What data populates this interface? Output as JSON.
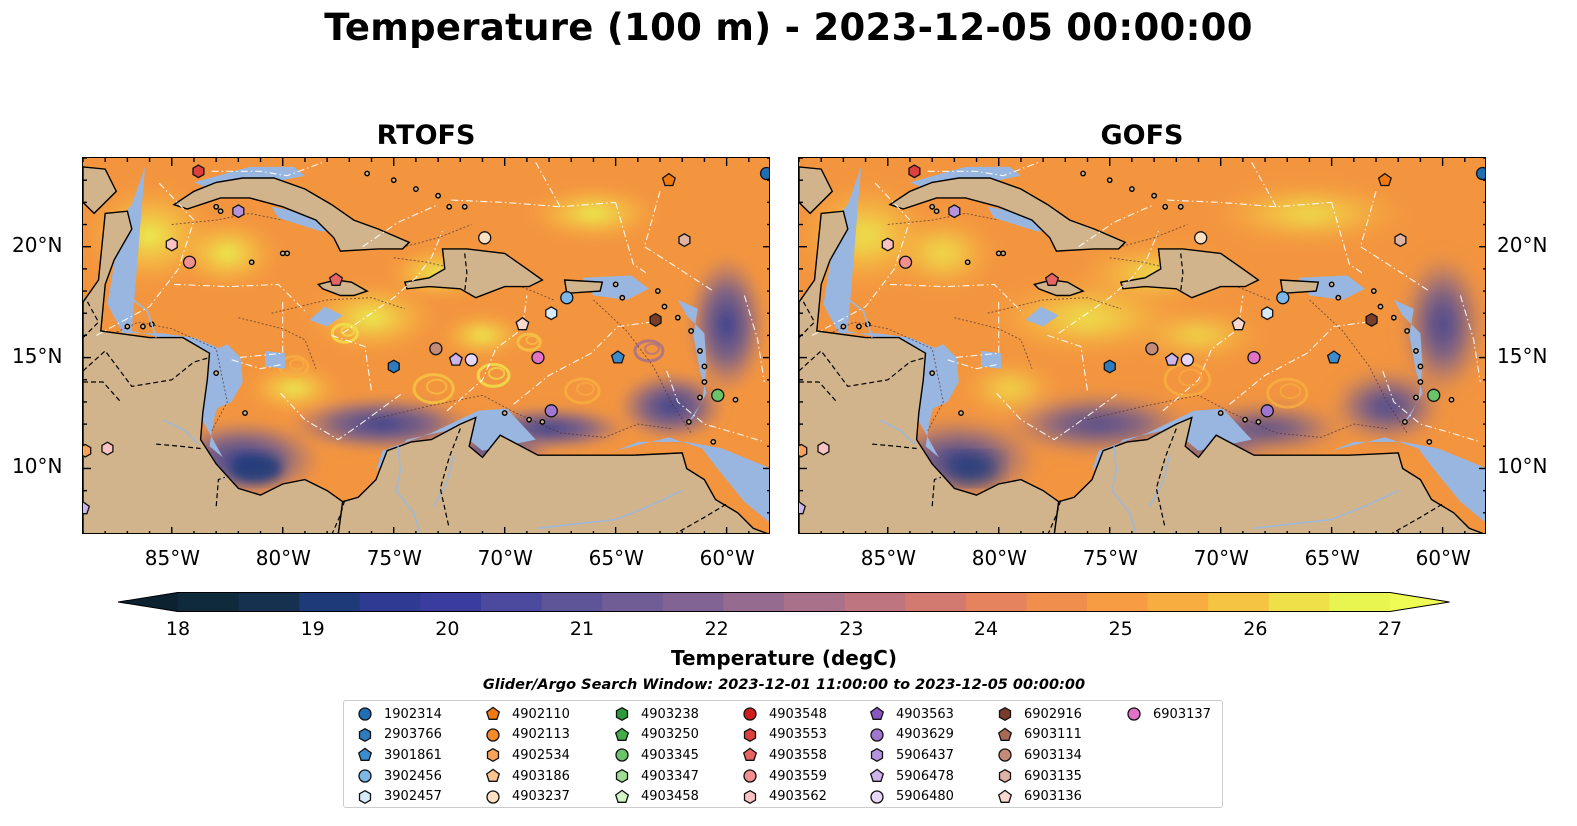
{
  "title": "Temperature (100 m) - 2023-12-05 00:00:00",
  "panels": [
    {
      "title": "RTOFS"
    },
    {
      "title": "GOFS"
    }
  ],
  "axes": {
    "lon_labels": [
      "85°W",
      "80°W",
      "75°W",
      "70°W",
      "65°W",
      "60°W"
    ],
    "lat_labels": [
      "20°N",
      "15°N",
      "10°N"
    ],
    "lon_range": [
      -89,
      -58
    ],
    "lat_range": [
      7,
      24
    ]
  },
  "colorbar": {
    "title": "Temperature (degC)",
    "ticks": [
      "18",
      "19",
      "20",
      "21",
      "22",
      "23",
      "24",
      "25",
      "26",
      "27"
    ],
    "range": [
      18,
      27
    ],
    "extend": "both",
    "colors": [
      "#0f2a3a",
      "#16304f",
      "#1f3a79",
      "#2d3b93",
      "#3b3d9e",
      "#4c4a9f",
      "#5e5498",
      "#705d95",
      "#826494",
      "#966b90",
      "#aa718a",
      "#bf7580",
      "#d27a6f",
      "#e4835d",
      "#f08e4c",
      "#f79c43",
      "#f8ad40",
      "#f5c442",
      "#efe04a",
      "#e8f551"
    ]
  },
  "search_window": "Glider/Argo Search Window: 2023-12-01 11:00:00 to 2023-12-05 00:00:00",
  "legend": [
    {
      "id": "1902314",
      "marker": "circle",
      "color": "#1f6fb5"
    },
    {
      "id": "2903766",
      "marker": "hexagon",
      "color": "#2e7bc0"
    },
    {
      "id": "3901861",
      "marker": "pentagon",
      "color": "#3a8ccf"
    },
    {
      "id": "3902456",
      "marker": "circle",
      "color": "#7db6e8"
    },
    {
      "id": "3902457",
      "marker": "hexagon",
      "color": "#d6ebfa"
    },
    {
      "id": "4902110",
      "marker": "pentagon",
      "color": "#f07a10"
    },
    {
      "id": "4902113",
      "marker": "circle",
      "color": "#f58a2a"
    },
    {
      "id": "4902534",
      "marker": "hexagon",
      "color": "#f9a35a"
    },
    {
      "id": "4903186",
      "marker": "pentagon",
      "color": "#fcc48f"
    },
    {
      "id": "4903237",
      "marker": "circle",
      "color": "#fde0c1"
    },
    {
      "id": "4903238",
      "marker": "hexagon",
      "color": "#2a9a3a"
    },
    {
      "id": "4903250",
      "marker": "pentagon",
      "color": "#45ad48"
    },
    {
      "id": "4903345",
      "marker": "circle",
      "color": "#6cc46a"
    },
    {
      "id": "4903347",
      "marker": "hexagon",
      "color": "#9fdc94"
    },
    {
      "id": "4903458",
      "marker": "pentagon",
      "color": "#d2f2c8"
    },
    {
      "id": "4903548",
      "marker": "circle",
      "color": "#cf1c1c"
    },
    {
      "id": "4903553",
      "marker": "hexagon",
      "color": "#dd3f3f"
    },
    {
      "id": "4903558",
      "marker": "pentagon",
      "color": "#e86464"
    },
    {
      "id": "4903559",
      "marker": "circle",
      "color": "#f28f8f"
    },
    {
      "id": "4903562",
      "marker": "hexagon",
      "color": "#fbc2c2"
    },
    {
      "id": "4903563",
      "marker": "pentagon",
      "color": "#8a56c0"
    },
    {
      "id": "4903629",
      "marker": "circle",
      "color": "#a077d0"
    },
    {
      "id": "5906437",
      "marker": "hexagon",
      "color": "#b594dd"
    },
    {
      "id": "5906478",
      "marker": "pentagon",
      "color": "#cdb4ea"
    },
    {
      "id": "5906480",
      "marker": "circle",
      "color": "#e6d7f7"
    },
    {
      "id": "6902916",
      "marker": "hexagon",
      "color": "#7a3d2a"
    },
    {
      "id": "6903111",
      "marker": "pentagon",
      "color": "#a66a55"
    },
    {
      "id": "6903134",
      "marker": "circle",
      "color": "#c48b78"
    },
    {
      "id": "6903135",
      "marker": "hexagon",
      "color": "#e0b3a5"
    },
    {
      "id": "6903136",
      "marker": "pentagon",
      "color": "#f7d9d0"
    },
    {
      "id": "6903137",
      "marker": "circle",
      "color": "#e272c8"
    }
  ],
  "floats": [
    {
      "id": "4903553",
      "lon": -83.8,
      "lat": 23.4
    },
    {
      "id": "5906437",
      "lon": -82.0,
      "lat": 21.6
    },
    {
      "id": "4903562",
      "lon": -85.0,
      "lat": 20.1
    },
    {
      "id": "4903559",
      "lon": -84.2,
      "lat": 19.3
    },
    {
      "id": "4903558",
      "lon": -77.6,
      "lat": 18.5
    },
    {
      "id": "4903237",
      "lon": -70.9,
      "lat": 20.4
    },
    {
      "id": "4902110",
      "lon": -62.6,
      "lat": 23.0
    },
    {
      "id": "6903135",
      "lon": -61.9,
      "lat": 20.3
    },
    {
      "id": "1902314",
      "lon": -58.2,
      "lat": 23.3
    },
    {
      "id": "3902456",
      "lon": -67.2,
      "lat": 17.7
    },
    {
      "id": "3902457",
      "lon": -67.9,
      "lat": 17.0
    },
    {
      "id": "6903136",
      "lon": -69.2,
      "lat": 16.5
    },
    {
      "id": "6902916",
      "lon": -63.2,
      "lat": 16.7
    },
    {
      "id": "6903134",
      "lon": -73.1,
      "lat": 15.4
    },
    {
      "id": "5906478",
      "lon": -72.2,
      "lat": 14.9
    },
    {
      "id": "5906480",
      "lon": -71.5,
      "lat": 14.9
    },
    {
      "id": "6903137",
      "lon": -68.5,
      "lat": 15.0
    },
    {
      "id": "3901861",
      "lon": -64.9,
      "lat": 15.0
    },
    {
      "id": "2903766",
      "lon": -75.0,
      "lat": 14.6
    },
    {
      "id": "4903629",
      "lon": -67.9,
      "lat": 12.6
    },
    {
      "id": "4903345",
      "lon": -60.4,
      "lat": 13.3
    },
    {
      "id": "4903562",
      "lon": -87.9,
      "lat": 10.9
    },
    {
      "id": "4902534",
      "lon": -88.9,
      "lat": 10.8
    },
    {
      "id": "5906478",
      "lon": -89.0,
      "lat": 8.2
    }
  ]
}
